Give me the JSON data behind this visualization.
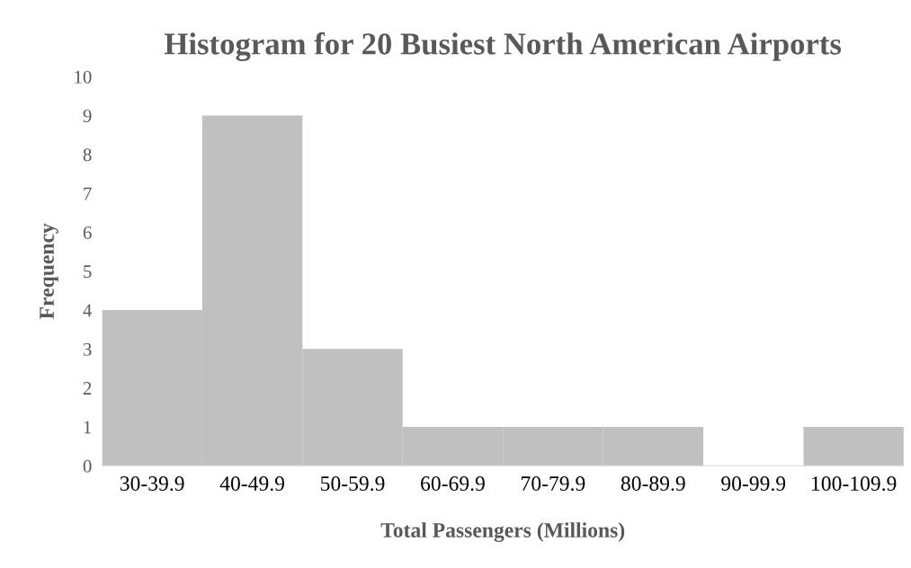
{
  "chart_data": {
    "type": "bar",
    "title": "Histogram for 20 Busiest North American Airports",
    "xlabel": "Total Passengers (Millions)",
    "ylabel": "Frequency",
    "categories": [
      "30-39.9",
      "40-49.9",
      "50-59.9",
      "60-69.9",
      "70-79.9",
      "80-89.9",
      "90-99.9",
      "100-109.9"
    ],
    "values": [
      4,
      9,
      3,
      1,
      1,
      1,
      0,
      1
    ],
    "color": "#c0c0c0",
    "ylim": [
      0,
      10
    ],
    "yticks": [
      0,
      1,
      2,
      3,
      4,
      5,
      6,
      7,
      8,
      9,
      10
    ],
    "grid": false
  }
}
